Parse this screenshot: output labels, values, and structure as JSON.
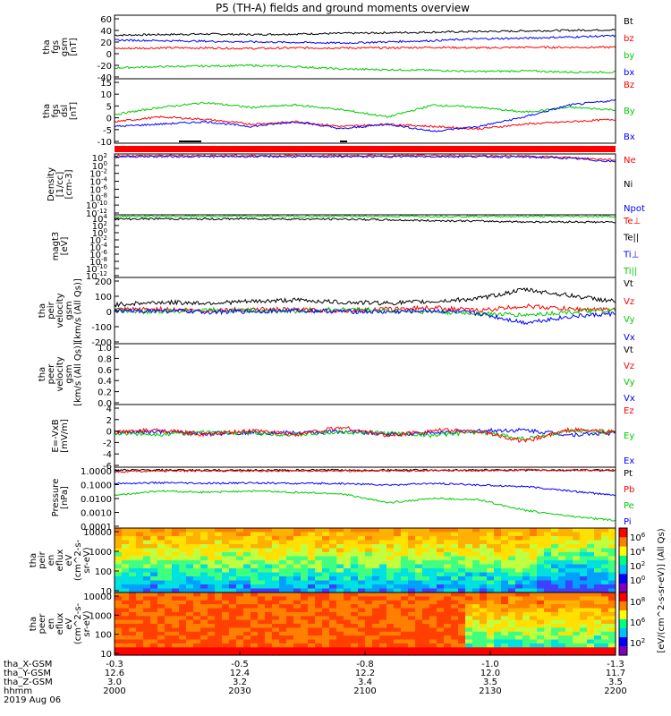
{
  "title": "P5 (TH-A) fields and ground moments overview",
  "colors": {
    "black": "#000000",
    "red": "#ff0000",
    "green": "#00cc00",
    "blue": "#0000ff"
  },
  "chart_data": [
    {
      "type": "line",
      "ylabel_lines": [
        "tha",
        "fgs",
        "gsm",
        "[nT]"
      ],
      "yticks": [
        "60",
        "40",
        "20",
        "0",
        "-20",
        "-40"
      ],
      "yrange": [
        -40,
        65
      ],
      "legend": [
        {
          "label": "Bt",
          "color": "black"
        },
        {
          "label": "bz",
          "color": "red"
        },
        {
          "label": "by",
          "color": "green"
        },
        {
          "label": "bx",
          "color": "blue"
        }
      ],
      "series": [
        {
          "name": "Bt",
          "color": "black",
          "values": [
            32,
            33,
            34,
            33,
            34,
            35,
            36,
            37,
            38,
            39,
            40,
            41
          ]
        },
        {
          "name": "bz",
          "color": "red",
          "values": [
            10,
            11,
            11,
            10,
            11,
            11,
            11,
            12,
            11,
            12,
            12,
            12
          ]
        },
        {
          "name": "by",
          "color": "green",
          "values": [
            -22,
            -20,
            -19,
            -18,
            -20,
            -24,
            -25,
            -26,
            -28,
            -27,
            -29,
            -29
          ]
        },
        {
          "name": "bx",
          "color": "blue",
          "values": [
            24,
            23,
            22,
            21,
            20,
            19,
            21,
            23,
            26,
            27,
            29,
            31
          ]
        }
      ]
    },
    {
      "type": "line",
      "ylabel_lines": [
        "tha",
        "fgs",
        "dsl",
        "[nT]"
      ],
      "yticks": [
        "15",
        "10",
        "5",
        "0",
        "-5",
        "-10"
      ],
      "yrange": [
        -12,
        15
      ],
      "legend": [
        {
          "label": "Bz",
          "color": "red"
        },
        {
          "label": "By",
          "color": "green"
        },
        {
          "label": "Bx",
          "color": "blue"
        }
      ],
      "series": [
        {
          "name": "Bz",
          "color": "red",
          "values": [
            -3,
            -1,
            -2,
            -4,
            -3,
            -5,
            -4,
            -5,
            -6,
            -4,
            -3,
            -2
          ]
        },
        {
          "name": "By",
          "color": "green",
          "values": [
            0,
            3,
            5,
            3,
            4,
            2,
            -1,
            4,
            3,
            1,
            3,
            2
          ]
        },
        {
          "name": "Bx",
          "color": "blue",
          "values": [
            -5,
            -4,
            -3,
            -5,
            -3,
            -6,
            -4,
            -7,
            -5,
            -1,
            4,
            6
          ]
        }
      ]
    },
    {
      "type": "line",
      "ylabel_lines": [
        "Density",
        "[1/cc]",
        "[cm-3]"
      ],
      "yticks": [
        "10",
        "10",
        "10",
        "10",
        "10",
        "10",
        "10",
        "10"
      ],
      "ytick_exps": [
        "2",
        "0",
        "-2",
        "-4",
        "-6",
        "-8",
        "-10",
        "-12"
      ],
      "yrange": [
        -12,
        2
      ],
      "log": true,
      "legend": [
        {
          "label": "Ne",
          "color": "red"
        },
        {
          "label": "Ni",
          "color": "black"
        },
        {
          "label": "Npot",
          "color": "blue"
        }
      ],
      "series": [
        {
          "name": "Ne",
          "color": "red",
          "values": [
            1.6,
            1.6,
            1.6,
            1.6,
            1.6,
            1.6,
            1.6,
            1.6,
            1.6,
            1.5,
            1.2,
            0.6
          ]
        },
        {
          "name": "Npot",
          "color": "blue",
          "values": [
            1.4,
            1.4,
            1.4,
            1.4,
            1.4,
            1.4,
            1.4,
            1.4,
            1.4,
            1.3,
            1.0,
            0.2
          ]
        }
      ]
    },
    {
      "type": "line",
      "ylabel_lines": [
        "magt3",
        "[eV]"
      ],
      "yticks": [
        "10",
        "10",
        "10",
        "10",
        "10",
        "10",
        "10",
        "10",
        "10"
      ],
      "ytick_exps": [
        "4",
        "2",
        "0",
        "-2",
        "-4",
        "-6",
        "-8",
        "-10",
        "-12"
      ],
      "yrange": [
        -12,
        4
      ],
      "legend": [
        {
          "label": "Te⊥",
          "color": "red"
        },
        {
          "label": "Te||",
          "color": "black"
        },
        {
          "label": "Ti⊥",
          "color": "blue"
        },
        {
          "label": "Ti||",
          "color": "green"
        }
      ],
      "series": [
        {
          "name": "Ti||",
          "color": "green",
          "values": [
            3.6,
            3.6,
            3.6,
            3.6,
            3.6,
            3.6,
            3.6,
            3.6,
            3.6,
            3.6,
            3.6,
            3.6
          ]
        },
        {
          "name": "Te||",
          "color": "black",
          "values": [
            2.9,
            3.0,
            2.9,
            3.0,
            2.9,
            2.9,
            2.7,
            2.5,
            2.4,
            2.2,
            2.2,
            2.1
          ]
        }
      ]
    },
    {
      "type": "line",
      "ylabel_lines": [
        "tha",
        "peir",
        "velocity",
        "gsm",
        "[km/s (All Qs)]"
      ],
      "yticks": [
        "200",
        "100",
        "0",
        "-100",
        "-200"
      ],
      "yrange": [
        -220,
        220
      ],
      "legend": [
        {
          "label": "Vt",
          "color": "black"
        },
        {
          "label": "Vz",
          "color": "red"
        },
        {
          "label": "Vy",
          "color": "green"
        },
        {
          "label": "Vx",
          "color": "blue"
        }
      ],
      "series": [
        {
          "name": "Vt",
          "color": "black",
          "values": [
            40,
            55,
            50,
            60,
            70,
            55,
            50,
            60,
            80,
            140,
            100,
            60
          ]
        },
        {
          "name": "Vz",
          "color": "red",
          "values": [
            5,
            10,
            0,
            10,
            5,
            0,
            10,
            20,
            0,
            30,
            10,
            5
          ]
        },
        {
          "name": "Vy",
          "color": "green",
          "values": [
            0,
            -10,
            5,
            0,
            -5,
            10,
            0,
            -10,
            -20,
            -30,
            -10,
            0
          ]
        },
        {
          "name": "Vx",
          "color": "blue",
          "values": [
            -5,
            0,
            -10,
            -5,
            0,
            -5,
            -10,
            0,
            -20,
            -80,
            -40,
            -20
          ]
        }
      ]
    },
    {
      "type": "line",
      "ylabel_lines": [
        "tha",
        "peer",
        "velocity",
        "gsm",
        "[km/s (All Qs)]"
      ],
      "yticks": [
        "1.0",
        "0.8",
        "0.6",
        "0.4",
        "0.2",
        "0.0"
      ],
      "yrange": [
        0,
        1
      ],
      "legend": [
        {
          "label": "Vt",
          "color": "black"
        },
        {
          "label": "Vz",
          "color": "red"
        },
        {
          "label": "Vy",
          "color": "green"
        },
        {
          "label": "Vx",
          "color": "blue"
        }
      ],
      "series": []
    },
    {
      "type": "line",
      "ylabel_lines": [
        "E=-VxB",
        "[mV/m]"
      ],
      "yticks": [
        "4",
        "2",
        "0",
        "-2",
        "-4",
        "-6"
      ],
      "yrange": [
        -6,
        5
      ],
      "legend": [
        {
          "label": "Ez",
          "color": "red"
        },
        {
          "label": "Ey",
          "color": "green"
        },
        {
          "label": "Ex",
          "color": "blue"
        }
      ],
      "series": [
        {
          "name": "Ex",
          "color": "blue",
          "values": [
            0,
            0.2,
            -0.1,
            0.1,
            0,
            0.3,
            -0.2,
            0,
            0.4,
            0.5,
            -0.3,
            0
          ]
        },
        {
          "name": "Ey",
          "color": "green",
          "values": [
            0,
            -0.2,
            0.1,
            0,
            -0.3,
            0.2,
            0,
            -0.4,
            0.2,
            -1,
            0.3,
            0.1
          ]
        },
        {
          "name": "Ez",
          "color": "red",
          "values": [
            0.2,
            0.5,
            -0.3,
            0.4,
            -0.2,
            1.0,
            -0.5,
            0.5,
            0.3,
            -1.5,
            0.6,
            0.2
          ]
        }
      ]
    },
    {
      "type": "line",
      "ylabel_lines": [
        "Pressure",
        "[nPa]"
      ],
      "yticks": [
        "1.0000",
        "0.1000",
        "0.0100",
        "0.0010",
        "0.0001"
      ],
      "yrange": [
        -4,
        0.1
      ],
      "log": true,
      "legend": [
        {
          "label": "Pt",
          "color": "black"
        },
        {
          "label": "Pb",
          "color": "red"
        },
        {
          "label": "Pe",
          "color": "green"
        },
        {
          "label": "Pi",
          "color": "blue"
        }
      ],
      "series": [
        {
          "name": "Pt",
          "color": "black",
          "values": [
            -0.1,
            -0.1,
            -0.1,
            -0.1,
            -0.1,
            -0.1,
            -0.1,
            -0.1,
            -0.1,
            -0.1,
            -0.1,
            -0.1
          ]
        },
        {
          "name": "Pb",
          "color": "red",
          "values": [
            -0.2,
            -0.15,
            -0.15,
            -0.15,
            -0.15,
            -0.15,
            -0.15,
            -0.12,
            -0.12,
            -0.1,
            -0.1,
            -0.1
          ]
        },
        {
          "name": "Pi",
          "color": "blue",
          "values": [
            -1.0,
            -0.95,
            -1.0,
            -0.95,
            -1.0,
            -1.0,
            -1.1,
            -1.0,
            -1.1,
            -1.2,
            -1.5,
            -1.8
          ]
        },
        {
          "name": "Pe",
          "color": "green",
          "values": [
            -1.8,
            -1.5,
            -1.6,
            -1.5,
            -1.6,
            -1.7,
            -2.3,
            -2.0,
            -2.1,
            -2.8,
            -3.2,
            -3.5
          ]
        }
      ]
    },
    {
      "type": "heatmap",
      "ylabel_lines": [
        "tha",
        "peir",
        "en",
        "eflux",
        "eV",
        "(cm^2-s-",
        "sr-eV)"
      ],
      "yticks": [
        "10000",
        "1000",
        "100",
        "10"
      ],
      "colorbar_ticks": [
        "10",
        "10",
        "10",
        "10"
      ],
      "colorbar_exps": [
        "6",
        "4",
        "2",
        "0"
      ]
    },
    {
      "type": "heatmap",
      "ylabel_lines": [
        "tha",
        "peer",
        "en",
        "eflux",
        "eV",
        "(cm^2-s-",
        "sr-eV)"
      ],
      "yticks": [
        "10000",
        "1000",
        "100",
        "10"
      ],
      "colorbar_ticks": [
        "10",
        "10",
        "10"
      ],
      "colorbar_exps": [
        "8",
        "6",
        "2"
      ]
    }
  ],
  "colorbar_label": "[eV/(cm^2-s-sr-eV)] (All Qs)",
  "xaxis": {
    "rows": [
      {
        "name": "tha_X-GSM",
        "values": [
          "-0.3",
          "-0.5",
          "-0.8",
          "-1.0",
          "-1.3"
        ]
      },
      {
        "name": "tha_Y-GSM",
        "values": [
          "12.6",
          "12.4",
          "12.2",
          "12.0",
          "11.7"
        ]
      },
      {
        "name": "tha_Z-GSM",
        "values": [
          "3.0",
          "3.2",
          "3.4",
          "3.5",
          "3.5"
        ]
      },
      {
        "name": "hhmm",
        "values": [
          "2000",
          "2030",
          "2100",
          "2130",
          "2200"
        ]
      }
    ],
    "date": "2019 Aug 06"
  }
}
